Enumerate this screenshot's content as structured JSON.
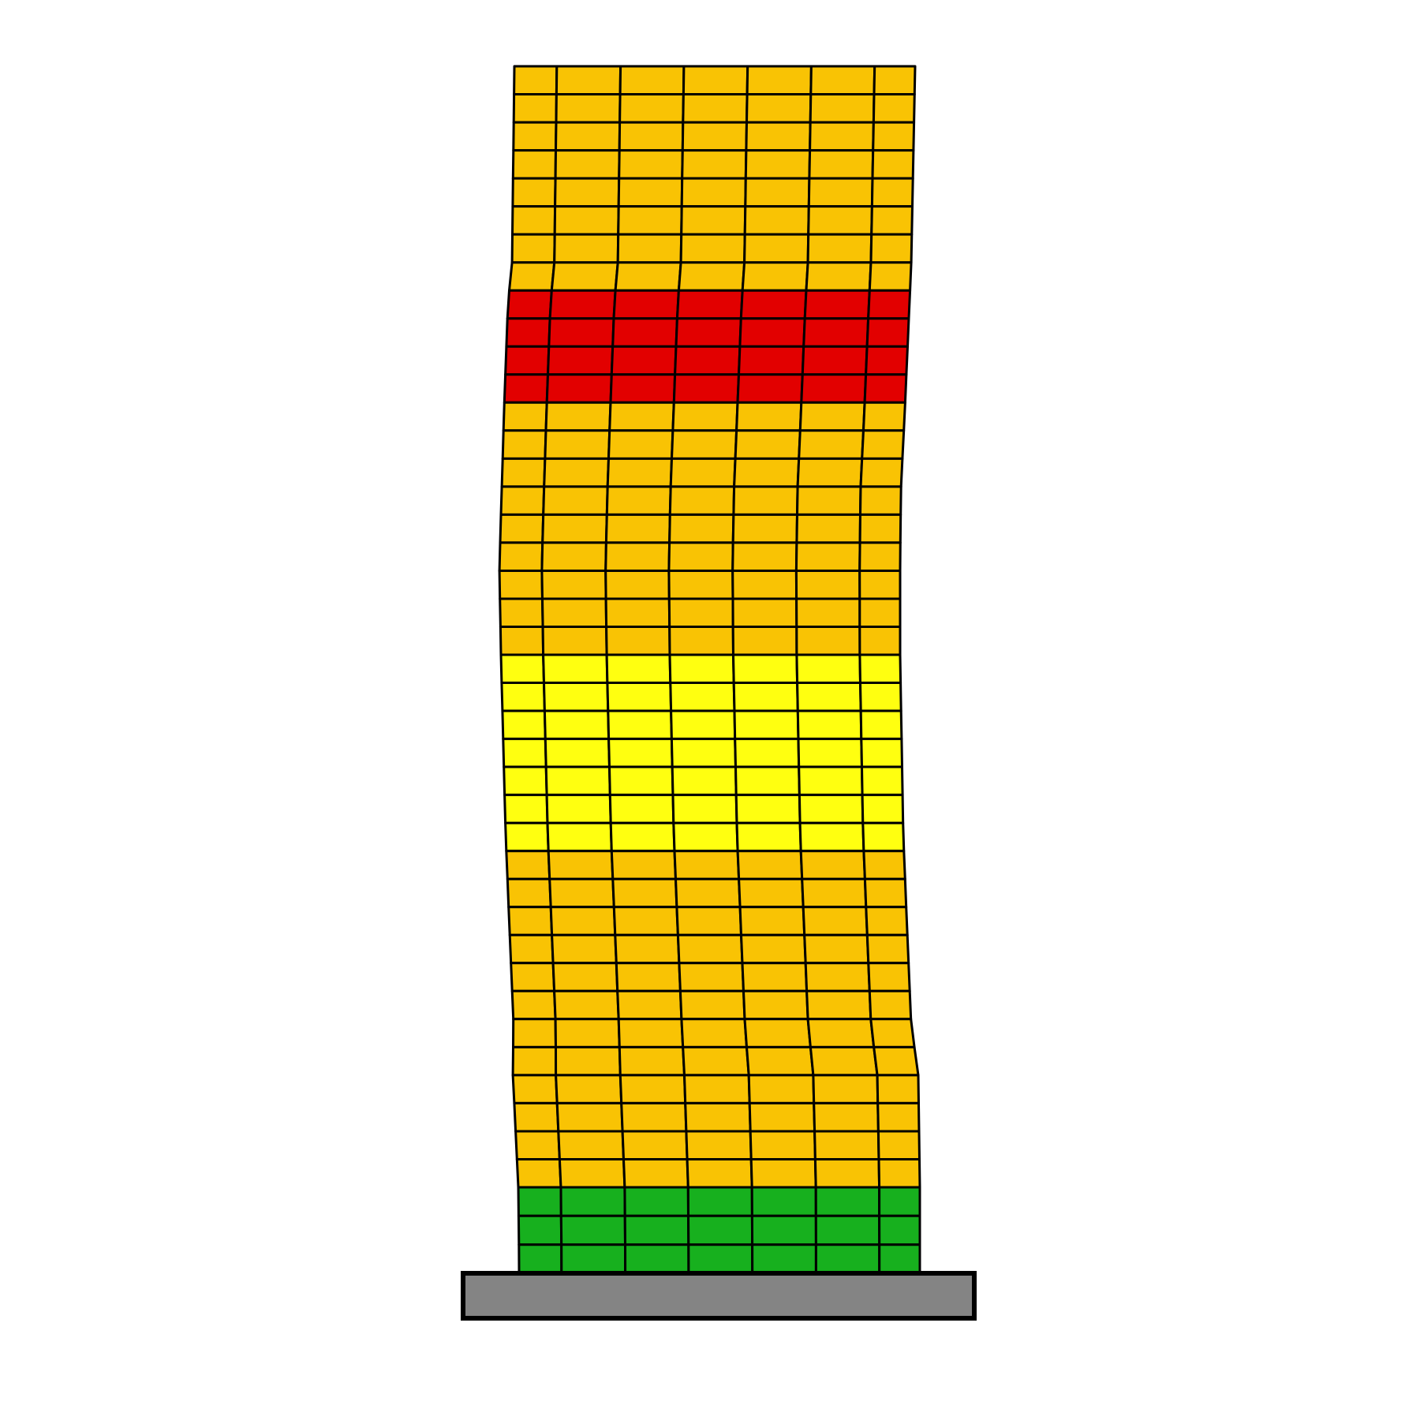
{
  "diagram": {
    "type": "deformed-building-mesh",
    "columns": 7,
    "zones": [
      {
        "name": "top-zone",
        "floors": 8,
        "color": "#F9C304"
      },
      {
        "name": "upper-damage-zone",
        "floors": 4,
        "color": "#E20000"
      },
      {
        "name": "upper-middle-zone",
        "floors": 9,
        "color": "#F9C304"
      },
      {
        "name": "middle-zone",
        "floors": 7,
        "color": "#FFFF10"
      },
      {
        "name": "lower-middle-zone",
        "floors": 12,
        "color": "#F9C304"
      },
      {
        "name": "base-zone",
        "floors": 3,
        "color": "#17B01E"
      }
    ],
    "foundation_color": "#848484",
    "line_color": "#000000",
    "background_color": "#FFFFFF"
  }
}
